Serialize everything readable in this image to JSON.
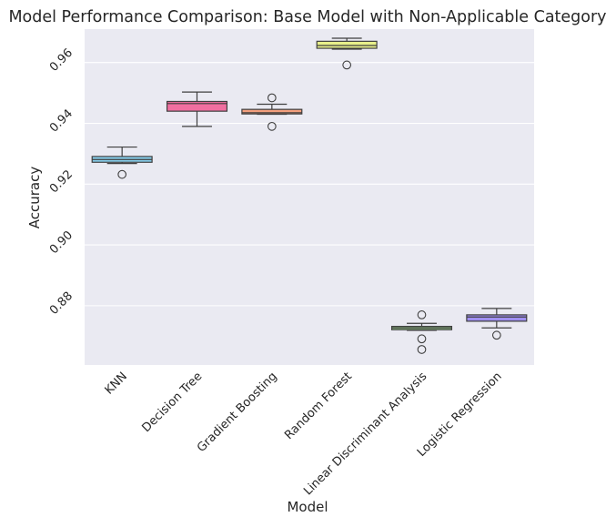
{
  "chart_data": {
    "type": "box",
    "title": "Model Performance Comparison: Base Model with Non-Applicable Category",
    "xlabel": "Model",
    "ylabel": "Accuracy",
    "ylim": [
      0.8605,
      0.971
    ],
    "yticks": [
      0.88,
      0.9,
      0.92,
      0.94,
      0.96
    ],
    "ytick_labels": [
      "0.88",
      "0.90",
      "0.92",
      "0.94",
      "0.96"
    ],
    "grid": true,
    "legend": "none",
    "background": "#eaeaf2",
    "categories": [
      "KNN",
      "Decision Tree",
      "Gradient Boosting",
      "Random Forest",
      "Linear Discriminant Analysis",
      "Logistic Regression"
    ],
    "boxes": [
      {
        "category": "KNN",
        "color": "#87ceeb",
        "whisker_low": 0.9268,
        "q1": 0.9272,
        "median": 0.9281,
        "q3": 0.9291,
        "whisker_high": 0.9322,
        "outliers": [
          0.9232
        ]
      },
      {
        "category": "Decision Tree",
        "color": "#f06fa0",
        "whisker_low": 0.939,
        "q1": 0.944,
        "median": 0.9465,
        "q3": 0.9472,
        "whisker_high": 0.9503,
        "outliers": []
      },
      {
        "category": "Gradient Boosting",
        "color": "#f4a07e",
        "whisker_low": 0.943,
        "q1": 0.9431,
        "median": 0.9435,
        "q3": 0.9446,
        "whisker_high": 0.9463,
        "outliers": [
          0.9484,
          0.939
        ]
      },
      {
        "category": "Random Forest",
        "color": "#e8f08a",
        "whisker_low": 0.9644,
        "q1": 0.9647,
        "median": 0.9656,
        "q3": 0.967,
        "whisker_high": 0.968,
        "outliers": [
          0.9592
        ]
      },
      {
        "category": "Linear Discriminant Analysis",
        "color": "#9ed491",
        "whisker_low": 0.8719,
        "q1": 0.8721,
        "median": 0.8727,
        "q3": 0.8732,
        "whisker_high": 0.8742,
        "outliers": [
          0.877,
          0.8691,
          0.8656
        ]
      },
      {
        "category": "Logistic Regression",
        "color": "#9f8ef0",
        "whisker_low": 0.8727,
        "q1": 0.8749,
        "median": 0.8763,
        "q3": 0.877,
        "whisker_high": 0.8791,
        "outliers": [
          0.8703
        ]
      }
    ]
  }
}
